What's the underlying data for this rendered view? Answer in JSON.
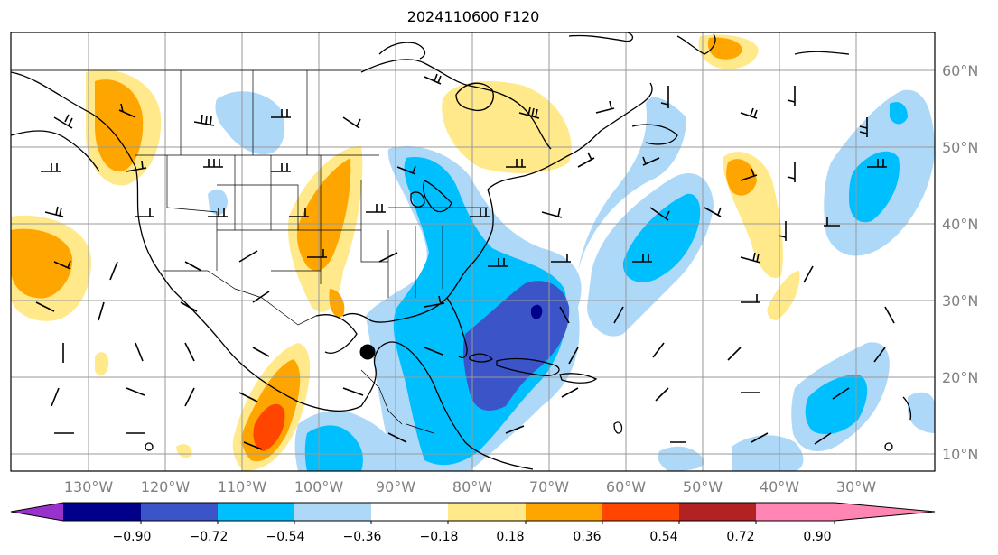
{
  "title": "2024110600 F120",
  "longitude_labels": [
    "130°W",
    "120°W",
    "110°W",
    "100°W",
    "90°W",
    "80°W",
    "70°W",
    "60°W",
    "50°W",
    "40°W",
    "30°W"
  ],
  "latitude_labels": [
    "60°N",
    "50°N",
    "40°N",
    "30°N",
    "20°N",
    "10°N"
  ],
  "colorbar": {
    "tick_labels": [
      "−0.90",
      "−0.72",
      "−0.54",
      "−0.36",
      "−0.18",
      "0.18",
      "0.36",
      "0.54",
      "0.72",
      "0.90"
    ],
    "colors": [
      "#9932cc",
      "#00008b",
      "#3b55c9",
      "#00bfff",
      "#add8f8",
      "#ffffff",
      "#ffe98a",
      "#ffa500",
      "#ff4500",
      "#b22222",
      "#ff85b5"
    ]
  },
  "marker": {
    "type": "filled-circle",
    "color": "#000000"
  }
}
